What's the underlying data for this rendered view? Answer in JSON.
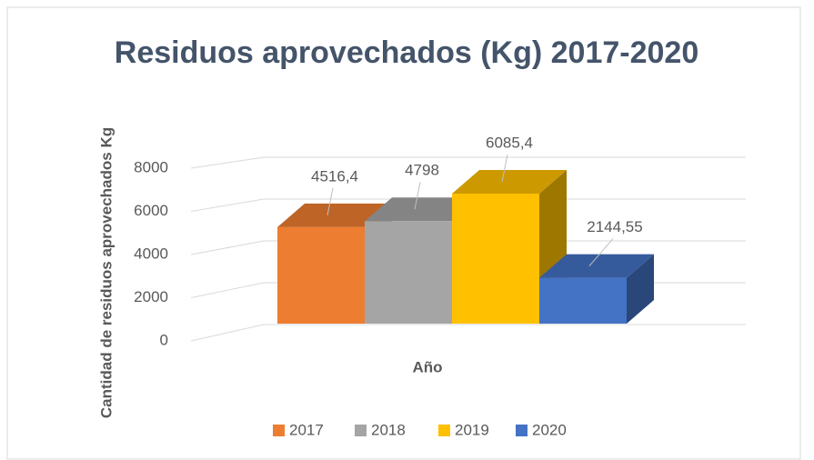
{
  "chart_data": {
    "type": "bar3d",
    "title": "Residuos aprovechados (Kg) 2017-2020",
    "x_label": "Año",
    "y_label": "Cantidad de residuos aprovechados Kg",
    "series": [
      {
        "name": "2017",
        "color": "#ed7d31",
        "values": [
          4516.4
        ],
        "value_labels": [
          "4516,4"
        ]
      },
      {
        "name": "2018",
        "color": "#a5a5a5",
        "values": [
          4798
        ],
        "value_labels": [
          "4798"
        ]
      },
      {
        "name": "2019",
        "color": "#ffc000",
        "values": [
          6085.4
        ],
        "value_labels": [
          "6085,4"
        ]
      },
      {
        "name": "2020",
        "color": "#4472c4",
        "values": [
          2144.55
        ],
        "value_labels": [
          "2144,55"
        ]
      }
    ],
    "ylim": [
      0,
      8000
    ],
    "yticks": [
      0,
      2000,
      4000,
      6000,
      8000
    ],
    "grid": true,
    "legend": "bottom"
  }
}
